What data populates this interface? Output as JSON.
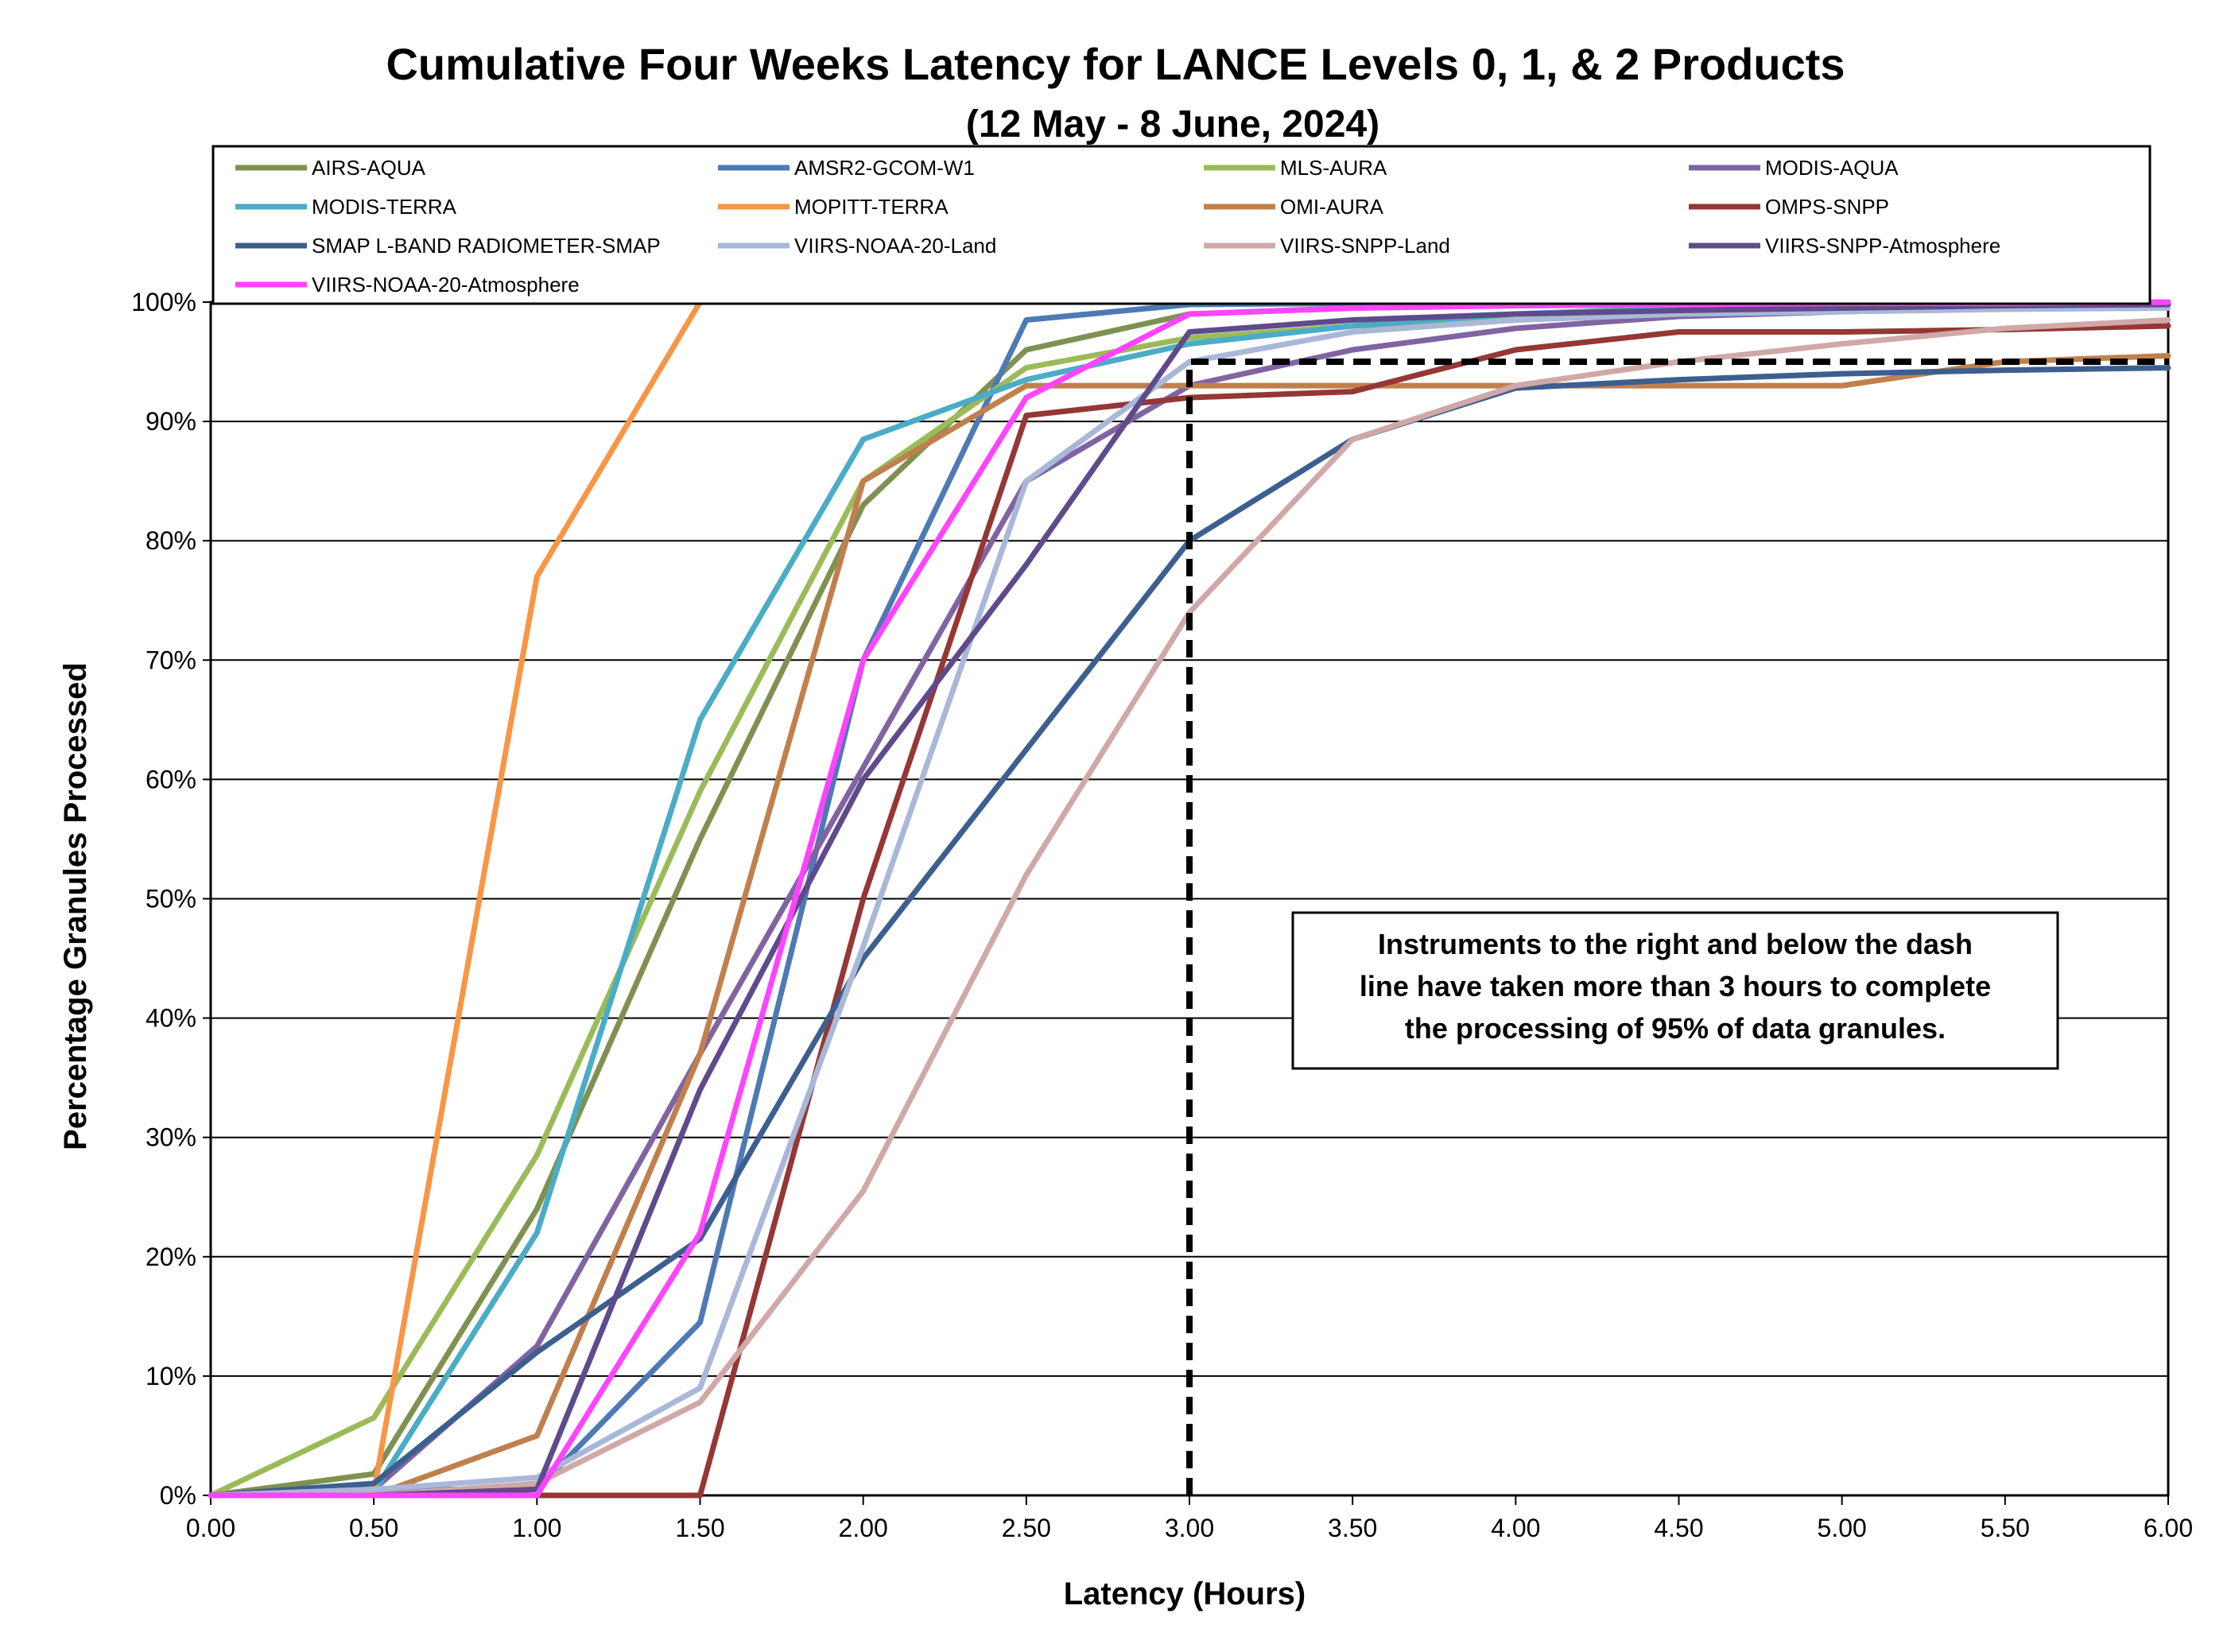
{
  "chart_data": {
    "type": "line",
    "title": "Cumulative Four Weeks Latency  for LANCE Levels 0, 1, & 2 Products",
    "subtitle": "(12  May   -  8  June,  2024)",
    "xlabel": "Latency (Hours)",
    "ylabel": "Percentage Granules Processed",
    "xlim": [
      0,
      6
    ],
    "ylim": [
      0,
      100
    ],
    "x_ticks": [
      "0.00",
      "0.50",
      "1.00",
      "1.50",
      "2.00",
      "2.50",
      "3.00",
      "3.50",
      "4.00",
      "4.50",
      "5.00",
      "5.50",
      "6.00"
    ],
    "y_ticks": [
      "0%",
      "10%",
      "20%",
      "30%",
      "40%",
      "50%",
      "60%",
      "70%",
      "80%",
      "90%",
      "100%"
    ],
    "x": [
      0,
      0.5,
      1.0,
      1.5,
      2.0,
      2.5,
      3.0,
      3.5,
      4.0,
      4.5,
      5.0,
      5.5,
      6.0
    ],
    "grid": "horizontal",
    "legend_position": "top",
    "annotation": {
      "lines": [
        "Instruments to the right and below the dash",
        "line have taken more than 3 hours to complete",
        "the processing of 95% of data granules."
      ]
    },
    "threshold": {
      "x": 3.0,
      "y": 95
    },
    "series": [
      {
        "name": "AIRS-AQUA",
        "color": "#7f9151",
        "values": [
          0,
          1.8,
          24,
          55,
          83,
          96,
          99,
          99.5,
          99.7,
          99.8,
          99.9,
          99.9,
          100
        ]
      },
      {
        "name": "AMSR2-GCOM-W1",
        "color": "#4e7ab3",
        "values": [
          0,
          0.5,
          0.5,
          14.5,
          70,
          98.5,
          99.8,
          99.9,
          100,
          100,
          100,
          100,
          100
        ]
      },
      {
        "name": "MLS-AURA",
        "color": "#9bbb59",
        "values": [
          0,
          6.5,
          28.5,
          59,
          85,
          94.5,
          97,
          98,
          98.5,
          99,
          99.3,
          99.5,
          99.8
        ]
      },
      {
        "name": "MODIS-AQUA",
        "color": "#8064a2",
        "values": [
          0,
          0.5,
          12.5,
          37,
          61,
          85,
          93,
          96,
          97.8,
          98.8,
          99.2,
          99.5,
          99.8
        ]
      },
      {
        "name": "MODIS-TERRA",
        "color": "#4bacc6",
        "values": [
          0,
          0.3,
          22,
          65,
          88.5,
          93.5,
          96.5,
          98,
          99,
          99.5,
          99.7,
          99.8,
          99.9
        ]
      },
      {
        "name": "MOPITT-TERRA",
        "color": "#f79646",
        "values": [
          0,
          0.3,
          77,
          100,
          100,
          100,
          100,
          100,
          100,
          100,
          100,
          100,
          100
        ]
      },
      {
        "name": "OMI-AURA",
        "color": "#c0804d",
        "values": [
          0,
          0,
          5,
          37,
          85,
          93,
          93,
          93,
          93,
          93,
          93,
          95,
          95.5
        ]
      },
      {
        "name": "OMPS-SNPP",
        "color": "#953735",
        "values": [
          0,
          0,
          0,
          0,
          50,
          90.5,
          92,
          92.5,
          96,
          97.5,
          97.5,
          97.7,
          98
        ]
      },
      {
        "name": "SMAP L-BAND RADIOMETER-SMAP",
        "color": "#3d5f8f",
        "values": [
          0,
          1,
          12,
          21.5,
          45,
          62.5,
          80,
          88.5,
          92.8,
          93.5,
          94,
          94.3,
          94.5
        ]
      },
      {
        "name": "VIIRS-NOAA-20-Land",
        "color": "#a9b8d8",
        "values": [
          0,
          0.5,
          1.5,
          9,
          46,
          85,
          95,
          97.5,
          98.5,
          99,
          99.2,
          99.4,
          99.5
        ]
      },
      {
        "name": "VIIRS-SNPP-Land",
        "color": "#d0a8a8",
        "values": [
          0,
          0,
          1,
          7.8,
          25.5,
          52,
          74,
          88.5,
          93,
          95,
          96.5,
          97.8,
          98.5
        ]
      },
      {
        "name": "VIIRS-SNPP-Atmosphere",
        "color": "#5f4b8b",
        "values": [
          0,
          0,
          0.5,
          34,
          60,
          78,
          97.5,
          98.5,
          99,
          99.3,
          99.5,
          99.7,
          99.8
        ]
      },
      {
        "name": "VIIRS-NOAA-20-Atmosphere",
        "color": "#ff44ff",
        "values": [
          0,
          0,
          0,
          22,
          70,
          92,
          99,
          99.5,
          99.7,
          99.8,
          99.9,
          99.9,
          100
        ]
      }
    ]
  }
}
